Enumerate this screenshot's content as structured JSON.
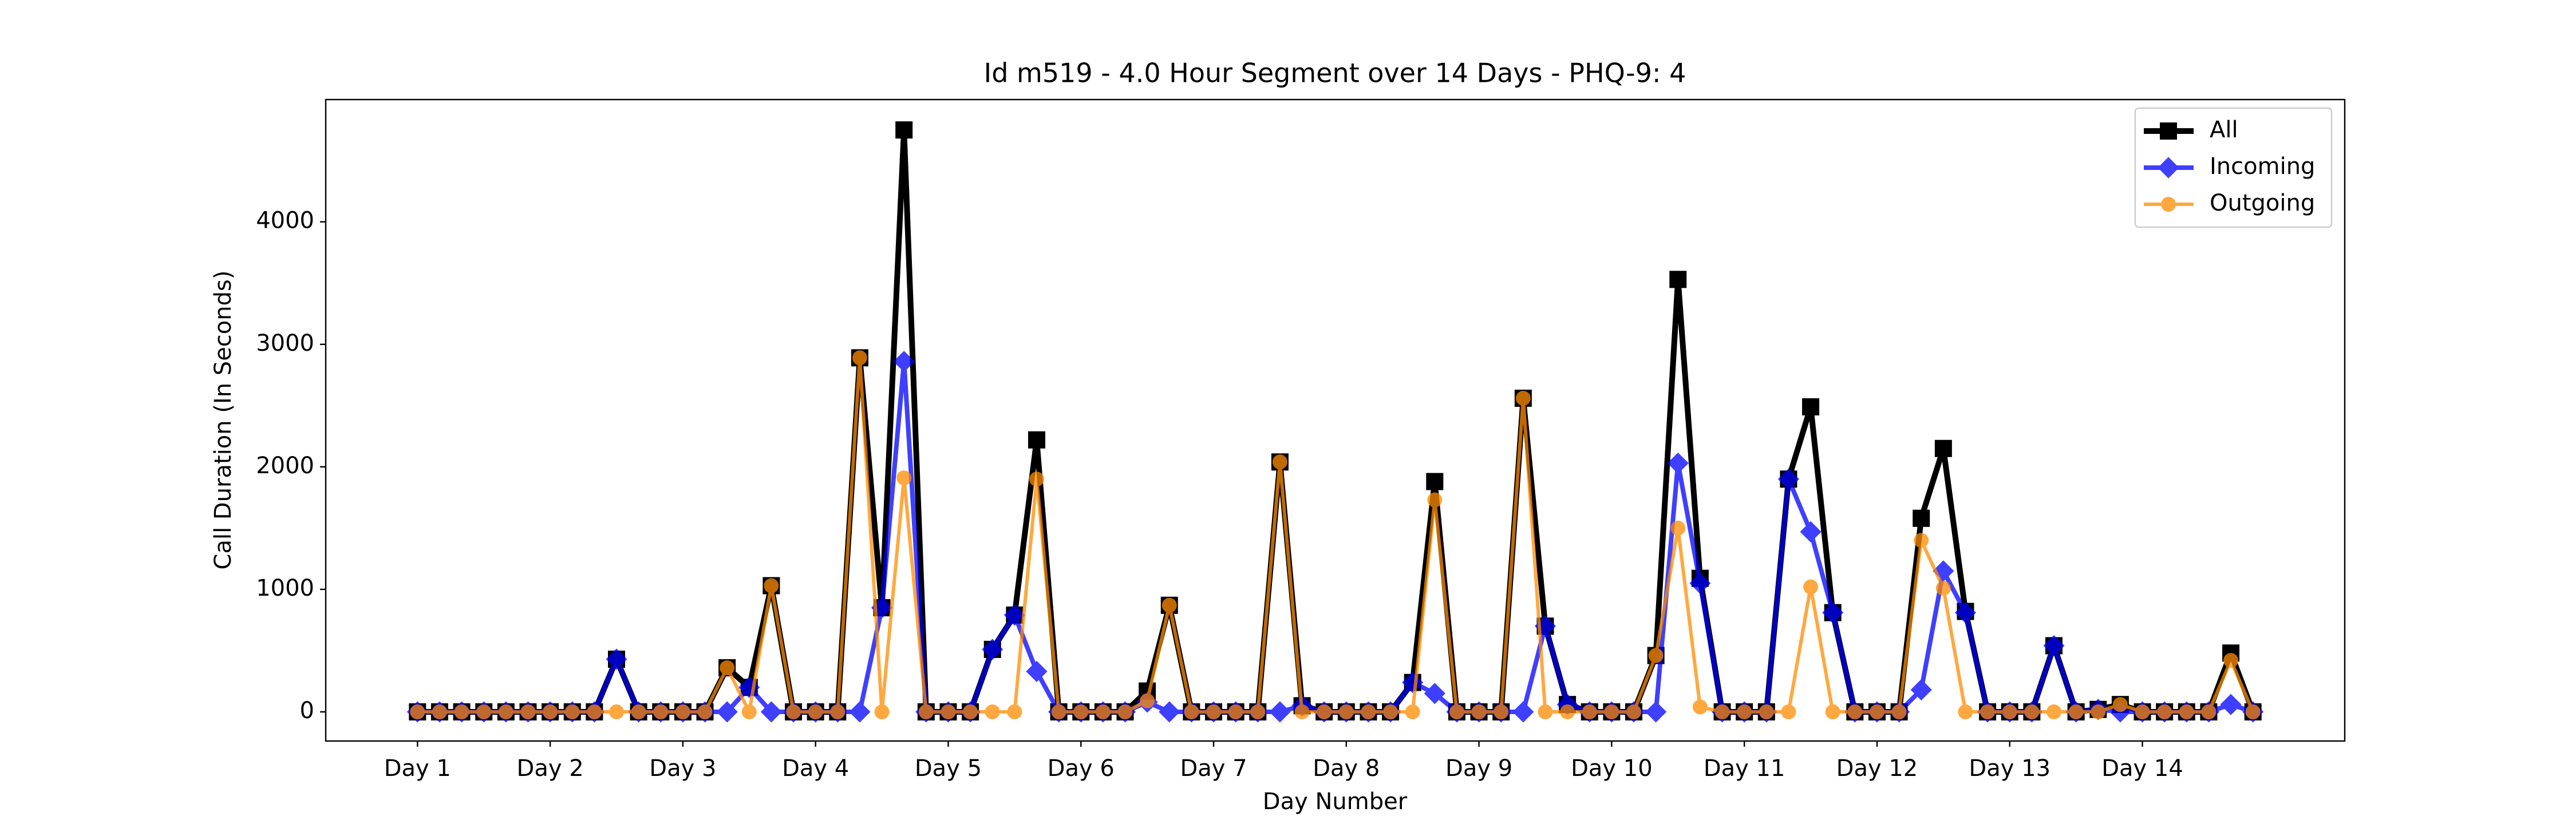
{
  "chart_data": {
    "type": "line",
    "title": "Id m519 - 4.0 Hour Segment over 14 Days - PHQ-9: 4",
    "xlabel": "Day Number",
    "ylabel": "Call Duration (In Seconds)",
    "categories": [
      "Day 1",
      null,
      null,
      null,
      null,
      null,
      "Day 2",
      null,
      null,
      null,
      null,
      null,
      "Day 3",
      null,
      null,
      null,
      null,
      null,
      "Day 4",
      null,
      null,
      null,
      null,
      null,
      "Day 5",
      null,
      null,
      null,
      null,
      null,
      "Day 6",
      null,
      null,
      null,
      null,
      null,
      "Day 7",
      null,
      null,
      null,
      null,
      null,
      "Day 8",
      null,
      null,
      null,
      null,
      null,
      "Day 9",
      null,
      null,
      null,
      null,
      null,
      "Day 10",
      null,
      null,
      null,
      null,
      null,
      "Day 11",
      null,
      null,
      null,
      null,
      null,
      "Day 12",
      null,
      null,
      null,
      null,
      null,
      "Day 13",
      null,
      null,
      null,
      null,
      null,
      "Day 14",
      null,
      null,
      null,
      null,
      null
    ],
    "series": [
      {
        "name": "All",
        "color": "#000000",
        "marker": "square",
        "values": [
          0,
          0,
          0,
          0,
          0,
          0,
          0,
          0,
          0,
          430,
          0,
          0,
          0,
          0,
          360,
          200,
          1030,
          0,
          0,
          0,
          2890,
          850,
          4750,
          0,
          0,
          0,
          510,
          790,
          2220,
          0,
          0,
          0,
          0,
          170,
          870,
          0,
          0,
          0,
          0,
          2040,
          50,
          0,
          0,
          0,
          0,
          240,
          1880,
          0,
          0,
          0,
          2560,
          700,
          60,
          0,
          0,
          0,
          460,
          3530,
          1090,
          0,
          0,
          0,
          1900,
          2490,
          810,
          0,
          0,
          0,
          1580,
          2150,
          820,
          0,
          0,
          0,
          540,
          0,
          20,
          60,
          0,
          0,
          0,
          0,
          480,
          0
        ]
      },
      {
        "name": "Incoming",
        "color": "#0000ff",
        "marker": "diamond",
        "values": [
          0,
          0,
          0,
          0,
          0,
          0,
          0,
          0,
          0,
          430,
          0,
          0,
          0,
          0,
          0,
          200,
          0,
          0,
          0,
          0,
          0,
          850,
          2860,
          0,
          0,
          0,
          510,
          790,
          330,
          0,
          0,
          0,
          0,
          80,
          0,
          0,
          0,
          0,
          0,
          0,
          50,
          0,
          0,
          0,
          0,
          240,
          150,
          0,
          0,
          0,
          0,
          700,
          60,
          0,
          0,
          0,
          0,
          2030,
          1050,
          0,
          0,
          0,
          1900,
          1470,
          810,
          0,
          0,
          0,
          180,
          1150,
          810,
          0,
          0,
          0,
          540,
          0,
          20,
          0,
          0,
          0,
          0,
          0,
          60,
          0
        ]
      },
      {
        "name": "Outgoing",
        "color": "#ff8c00",
        "marker": "circle",
        "values": [
          0,
          0,
          0,
          0,
          0,
          0,
          0,
          0,
          0,
          0,
          0,
          0,
          0,
          0,
          360,
          0,
          1030,
          0,
          0,
          0,
          2890,
          0,
          1910,
          0,
          0,
          0,
          0,
          0,
          1900,
          0,
          0,
          0,
          0,
          90,
          870,
          0,
          0,
          0,
          0,
          2040,
          0,
          0,
          0,
          0,
          0,
          0,
          1730,
          0,
          0,
          0,
          2560,
          0,
          0,
          0,
          0,
          0,
          460,
          1500,
          40,
          0,
          0,
          0,
          0,
          1020,
          0,
          0,
          0,
          0,
          1400,
          1010,
          0,
          0,
          0,
          0,
          0,
          0,
          0,
          60,
          0,
          0,
          0,
          0,
          420,
          0
        ]
      }
    ],
    "xlim": [
      -4.15,
      87.15
    ],
    "ylim": [
      -238,
      4998
    ],
    "yticks": [
      0,
      1000,
      2000,
      3000,
      4000
    ],
    "legend": "upper right"
  }
}
